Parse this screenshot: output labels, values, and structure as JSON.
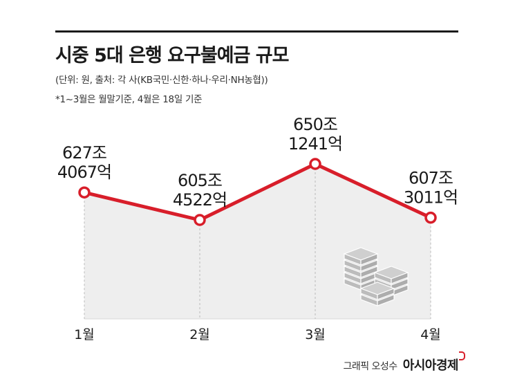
{
  "header": {
    "title": "시중 5대 은행 요구불예금 규모",
    "subtitle": "(단위: 원, 출처: 각 사(KB국민·신한·하나·우리·NH농협))",
    "note": "*1~3월은 월말기준, 4월은 18일 기준"
  },
  "chart_data": {
    "type": "line",
    "categories": [
      "1월",
      "2월",
      "3월",
      "4월"
    ],
    "values": [
      627.4067,
      605.4522,
      650.1241,
      607.3011
    ],
    "value_labels": [
      [
        "627조",
        "4067억"
      ],
      [
        "605조",
        "4522억"
      ],
      [
        "650조",
        "1241억"
      ],
      [
        "607조",
        "3011억"
      ]
    ],
    "unit": "원",
    "grid": false,
    "area_fill": true,
    "colors": {
      "line": "#d81e2a",
      "area": "#eeeeee",
      "dashed": "#bbbbbb"
    }
  },
  "decoration": {
    "icon": "money-stack-icon"
  },
  "credit": {
    "author": "그래픽 오성수",
    "brand": "아시아경제"
  }
}
